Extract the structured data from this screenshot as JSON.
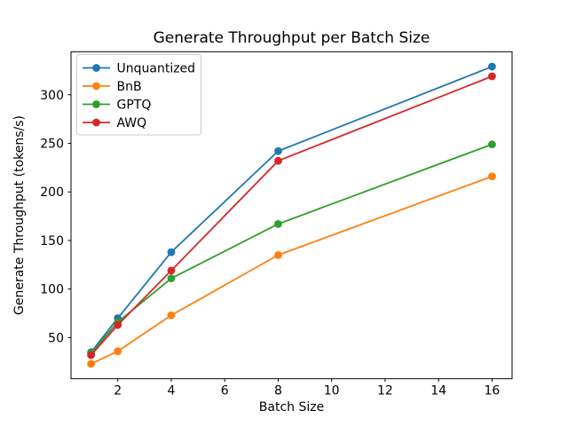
{
  "chart_data": {
    "type": "line",
    "title": "Generate Throughput per Batch Size",
    "xlabel": "Batch Size",
    "ylabel": "Generate Throughput (tokens/s)",
    "x": [
      1,
      2,
      4,
      8,
      16
    ],
    "series": [
      {
        "name": "Unquantized",
        "color": "#1f77b4",
        "values": [
          35,
          70,
          138,
          242,
          329
        ]
      },
      {
        "name": "BnB",
        "color": "#ff7f0e",
        "values": [
          23,
          36,
          73,
          135,
          216
        ]
      },
      {
        "name": "GPTQ",
        "color": "#2ca02c",
        "values": [
          34,
          66,
          111,
          167,
          249
        ]
      },
      {
        "name": "AWQ",
        "color": "#d62728",
        "values": [
          32,
          63,
          119,
          232,
          319
        ]
      }
    ],
    "xticks": [
      2,
      4,
      6,
      8,
      10,
      12,
      14,
      16
    ],
    "yticks": [
      50,
      100,
      150,
      200,
      250,
      300
    ],
    "xlim": [
      0.25,
      16.75
    ],
    "ylim": [
      7.7,
      344.3
    ],
    "legend_position": "upper left",
    "grid": false,
    "axis_color": "#000000",
    "background_color": "#ffffff",
    "legend_border_color": "#cccccc"
  }
}
